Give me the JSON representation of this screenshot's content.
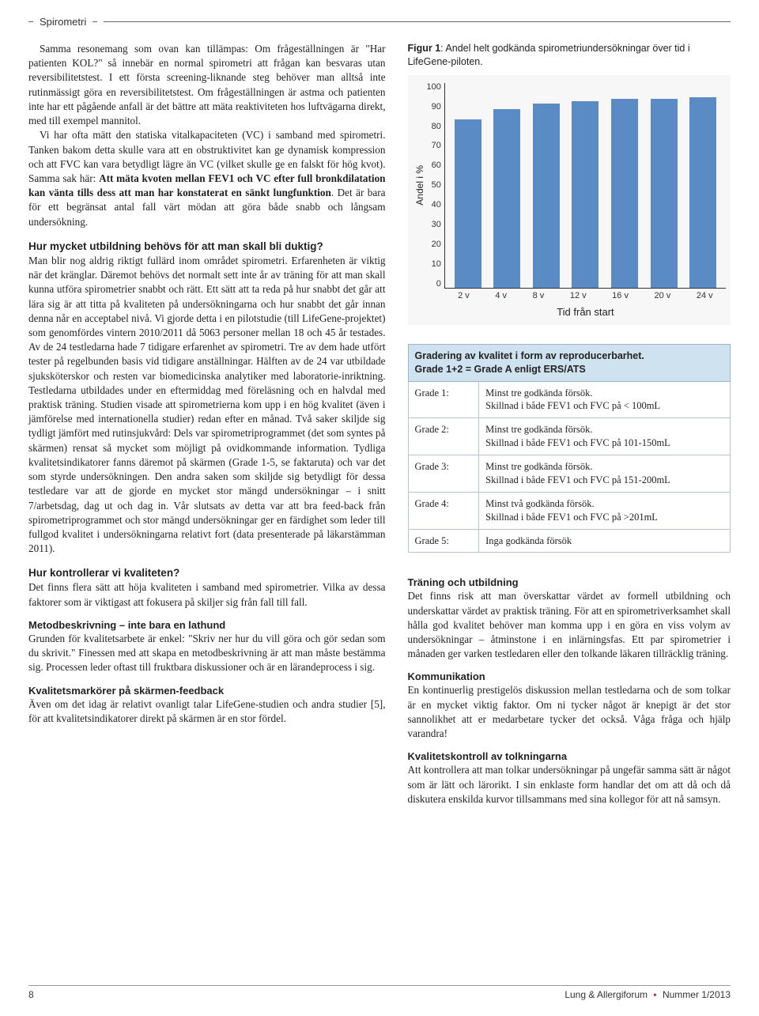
{
  "section_label": "Spirometri",
  "left": {
    "p1": "Samma resonemang som ovan kan tillämpas: Om frågeställningen är \"Har patienten KOL?\" så innebär en normal spirometri att frågan kan besvaras utan reversibilitetstest. I ett första screening-liknande steg behöver man alltså inte rutinmässigt göra en reversibilitetstest. Om frågeställningen är astma och patienten inte har ett pågående anfall är det bättre att mäta reaktiviteten hos luftvägarna direkt, med till exempel mannitol.",
    "p2a": "Vi har ofta mätt den statiska vitalkapaciteten (VC) i samband med spirometri. Tanken bakom detta skulle vara att en obstruktivitet kan ge dynamisk kompression och att FVC kan vara betydligt lägre än VC (vilket skulle ge en falskt för hög kvot). Samma sak här: ",
    "p2b_bold": "Att mäta kvoten mellan FEV1 och VC efter full bronkdilatation kan vänta tills dess att man har konstaterat en sänkt lungfunktion",
    "p2c": ". Det är bara för ett begränsat antal fall värt mödan att göra både snabb och långsam undersökning.",
    "h1": "Hur mycket utbildning behövs för att man skall bli duktig?",
    "p3": "Man blir nog aldrig riktigt fullärd inom området spirometri. Erfarenheten är viktig när det kränglar. Däremot behövs det normalt sett inte år av träning för att man skall kunna utföra spirometrier snabbt och rätt. Ett sätt att ta reda på hur snabbt det går att lära sig är att titta på kvaliteten på undersökningarna och hur snabbt det går innan denna når en acceptabel nivå. Vi gjorde detta i en pilotstudie (till LifeGene-projektet) som genomfördes vintern 2010/2011 då 5063 personer mellan 18 och 45 år testades. Av de 24 testledarna hade 7 tidigare erfarenhet av spirometri. Tre av dem hade utfört tester på regelbunden basis vid tidigare anställningar. Hälften av de 24 var utbildade sjuksköterskor och resten var biomedicinska analytiker med laboratorie-inriktning. Testledarna utbildades under en eftermiddag med föreläsning och en halvdal med praktisk träning. Studien visade att spirometrierna kom upp i en hög kvalitet (även i jämförelse med internationella studier) redan efter en månad. Två saker skiljde sig tydligt jämfört med rutinsjukvård: Dels var spirometriprogrammet (det som syntes på skärmen) rensat så mycket som möjligt på ovidkommande information. Tydliga kvalitetsindikatorer fanns däremot på skärmen (Grade 1-5, se faktaruta) och var det som styrde undersökningen. Den andra saken som skiljde sig betydligt för dessa testledare var att de gjorde en mycket stor mängd undersökningar – i snitt 7/arbetsdag, dag ut och dag in. Vår slutsats av detta var att bra feed-back från spirometriprogrammet och stor mängd undersökningar ger en färdighet som leder till fullgod kvalitet i undersökningarna relativt fort (data presenterade på läkarstämman 2011).",
    "h2": "Hur kontrollerar vi kvaliteten?",
    "p4": "Det finns flera sätt att höja kvaliteten i samband med spirometrier. Vilka av dessa faktorer som är viktigast att fokusera på skiljer sig från fall till fall.",
    "h3": "Metodbeskrivning – inte bara en lathund",
    "p5": "Grunden för kvalitetsarbete är enkel: \"Skriv ner hur du vill göra och gör sedan som du skrivit.\" Finessen med att skapa en metodbeskrivning är att man måste bestämma sig. Processen leder oftast till fruktbara diskussioner och är en lärandeprocess i sig.",
    "h4": "Kvalitetsmarkörer på skärmen-feedback",
    "p6": "Även om det idag är relativt ovanligt talar LifeGene-studien och andra studier [5], för att kvalitetsindikatorer direkt på skärmen är en stor fördel."
  },
  "right": {
    "fig_label": "Figur 1",
    "fig_caption": ": Andel helt godkända spirometriundersökningar över tid i LifeGene-piloten.",
    "chart": {
      "type": "bar",
      "ylabel": "Andel i %",
      "xlabel": "Tid från start",
      "ylim": [
        0,
        100
      ],
      "ytick_step": 10,
      "yticks": [
        "100",
        "90",
        "80",
        "70",
        "60",
        "50",
        "40",
        "30",
        "20",
        "10",
        "0"
      ],
      "categories": [
        "2 v",
        "4 v",
        "8 v",
        "12 v",
        "16 v",
        "20 v",
        "24 v"
      ],
      "values": [
        82,
        87,
        90,
        91,
        92,
        92,
        93
      ],
      "bar_color": "#5b8bc5",
      "background_color": "#f7f7f7",
      "axis_color": "#333333",
      "label_fontsize": 11
    },
    "table_header_l1": "Gradering av kvalitet i form av reproducerbarhet.",
    "table_header_l2": "Grade 1+2 = Grade A enligt ERS/ATS",
    "rows": [
      {
        "g": "Grade 1:",
        "d": "Minst tre godkända försök.\nSkillnad i både FEV1 och FVC på < 100mL"
      },
      {
        "g": "Grade 2:",
        "d": "Minst tre godkända försök.\nSkillnad i både FEV1 och FVC på 101-150mL"
      },
      {
        "g": "Grade 3:",
        "d": "Minst tre godkända försök.\nSkillnad i både FEV1 och FVC på 151-200mL"
      },
      {
        "g": "Grade 4:",
        "d": "Minst två godkända försök.\nSkillnad i både FEV1 och FVC på >201mL"
      },
      {
        "g": "Grade 5:",
        "d": "Inga godkända försök"
      }
    ],
    "hA": "Träning och utbildning",
    "pA": "Det finns risk att man överskattar värdet av formell utbildning och underskattar värdet av praktisk träning. För att en spirometriverksamhet skall hålla god kvalitet behöver man komma upp i en göra en viss volym av undersökningar – åtminstone i en inlärningsfas. Ett par spirometrier i månaden ger varken testledaren eller den tolkande läkaren tillräcklig träning.",
    "hB": "Kommunikation",
    "pB": "En kontinuerlig prestigelös diskussion mellan testledarna och de som tolkar är en mycket viktig faktor. Om ni tycker något är knepigt är det stor sannolikhet att er medarbetare tycker det också. Våga fråga och hjälp varandra!",
    "hC": "Kvalitetskontroll av tolkningarna",
    "pC": "Att kontrollera att man tolkar undersökningar på ungefär samma sätt är något som är lätt och lärorikt. I sin enklaste form handlar det om att då och då diskutera enskilda kurvor tillsammans med sina kollegor för att nå samsyn."
  },
  "footer": {
    "page": "8",
    "journal": "Lung & Allergiforum",
    "issue": "Nummer 1/2013"
  }
}
